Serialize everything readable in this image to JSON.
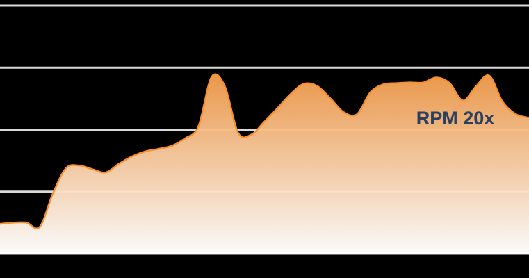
{
  "chart_data": {
    "type": "area",
    "annotation": "RPM 20x",
    "color": "#f7902e",
    "values": [
      0.48,
      0.5,
      0.5,
      0.43,
      0.97,
      1.38,
      1.42,
      1.36,
      1.31,
      1.45,
      1.57,
      1.65,
      1.69,
      1.74,
      1.86,
      2.05,
      2.85,
      2.7,
      1.95,
      1.92,
      2.13,
      2.35,
      2.58,
      2.74,
      2.7,
      2.5,
      2.28,
      2.25,
      2.6,
      2.73,
      2.75,
      2.76,
      2.76,
      2.84,
      2.75,
      2.47,
      2.7,
      2.87,
      2.45,
      2.25,
      2.19
    ],
    "ylim": [
      0,
      4
    ],
    "yticks": [
      0,
      1,
      2,
      3,
      4
    ],
    "grid": true
  }
}
